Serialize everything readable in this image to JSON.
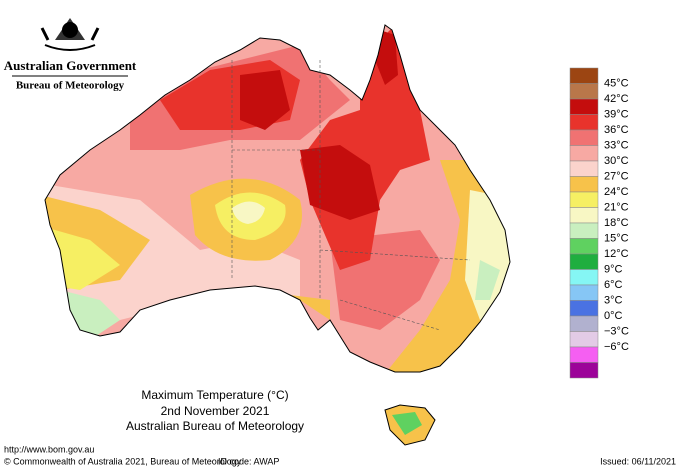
{
  "header": {
    "org": "Australian Government",
    "dept": "Bureau of Meteorology"
  },
  "legend": {
    "colors": [
      "#9c4512",
      "#b9774a",
      "#c40d0d",
      "#e8332c",
      "#f07272",
      "#f7a9a3",
      "#fbd3cc",
      "#f7c24a",
      "#f6ef63",
      "#f8f7c4",
      "#c9efbf",
      "#5fd160",
      "#1fae3f",
      "#85f6f4",
      "#86c6f5",
      "#4a72e2",
      "#b1b1cf",
      "#e3cbe6",
      "#f55ff2",
      "#9c0399"
    ],
    "labels": [
      "45°C",
      "42°C",
      "39°C",
      "36°C",
      "33°C",
      "30°C",
      "27°C",
      "24°C",
      "21°C",
      "18°C",
      "15°C",
      "12°C",
      "9°C",
      "6°C",
      "3°C",
      "0°C",
      "−3°C",
      "−6°C"
    ]
  },
  "caption": {
    "title": "Maximum Temperature (°C)",
    "date": "2nd November 2021",
    "source": "Australian Bureau of Meteorology"
  },
  "footer": {
    "url": "http://www.bom.gov.au",
    "copyright": "© Commonwealth of Australia 2021, Bureau of Meteorology",
    "id": "ID code: AWAP",
    "issued": "Issued: 06/11/2021"
  }
}
